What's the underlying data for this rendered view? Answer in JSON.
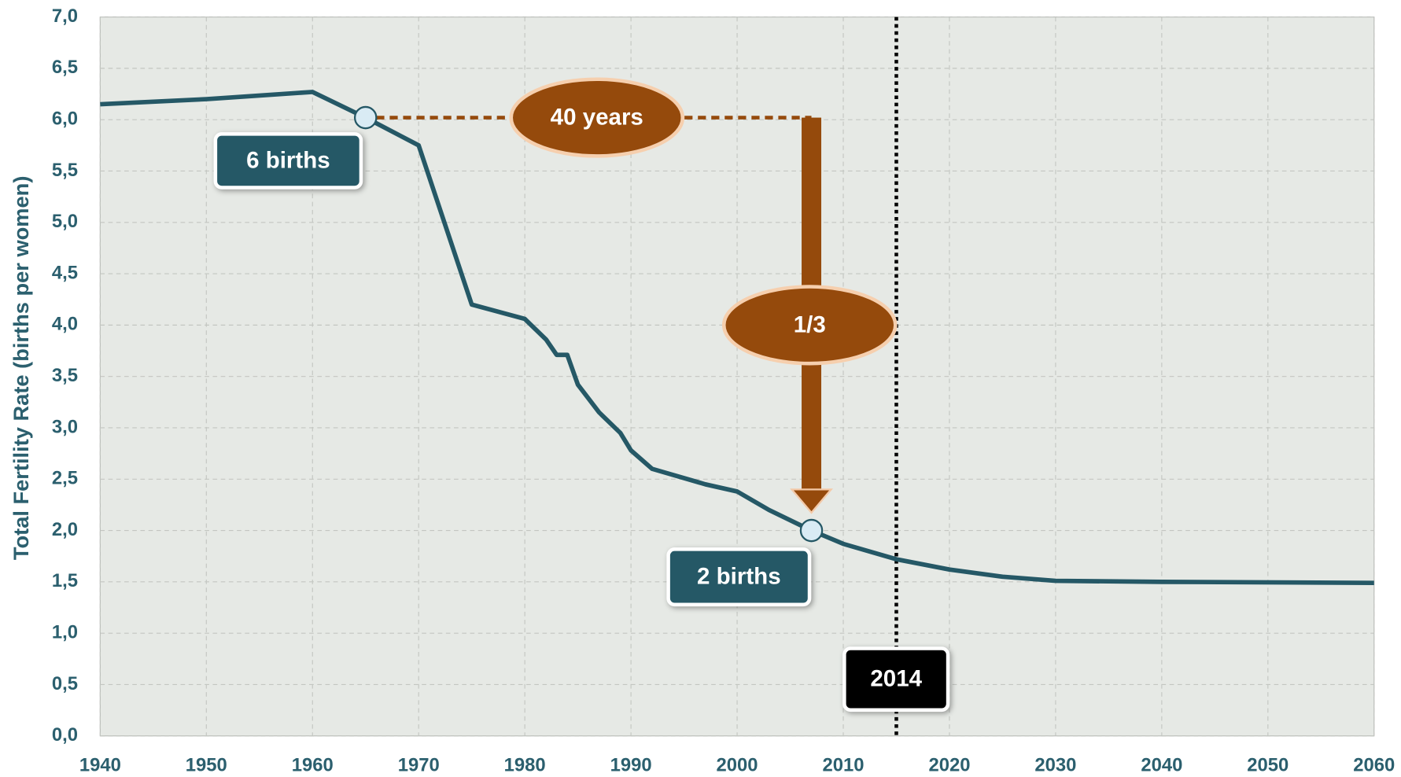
{
  "chart_data": {
    "type": "line",
    "y_label": "Total Fertility Rate (births per  women)",
    "x": [
      1940,
      1950,
      1960,
      1965,
      1970,
      1975,
      1980,
      1982,
      1983,
      1984,
      1985,
      1987,
      1989,
      1990,
      1992,
      1997,
      2000,
      2003,
      2007,
      2010,
      2015,
      2020,
      2025,
      2030,
      2040,
      2060
    ],
    "series": [
      {
        "name": "Total Fertility Rate",
        "color": "#255866",
        "values": [
          6.15,
          6.2,
          6.27,
          6.02,
          5.75,
          4.2,
          4.06,
          3.86,
          3.71,
          3.71,
          3.42,
          3.15,
          2.95,
          2.78,
          2.6,
          2.45,
          2.38,
          2.2,
          2.0,
          1.87,
          1.72,
          1.62,
          1.55,
          1.51,
          1.5,
          1.49
        ]
      }
    ],
    "xlim": [
      1940,
      2060
    ],
    "xticks": [
      1940,
      1950,
      1960,
      1970,
      1980,
      1990,
      2000,
      2010,
      2020,
      2030,
      2040,
      2050,
      2060
    ],
    "ylim": [
      0,
      7
    ],
    "yticks": [
      {
        "value": 0,
        "label": "0,0"
      },
      {
        "value": 0.5,
        "label": "0,5"
      },
      {
        "value": 1,
        "label": "1,0"
      },
      {
        "value": 1.5,
        "label": "1,5"
      },
      {
        "value": 2,
        "label": "2,0"
      },
      {
        "value": 2.5,
        "label": "2,5"
      },
      {
        "value": 3,
        "label": "3,0"
      },
      {
        "value": 3.5,
        "label": "3,5"
      },
      {
        "value": 4,
        "label": "4,0"
      },
      {
        "value": 4.5,
        "label": "4,5"
      },
      {
        "value": 5,
        "label": "5,0"
      },
      {
        "value": 5.5,
        "label": "5,5"
      },
      {
        "value": 6,
        "label": "6,0"
      },
      {
        "value": 6.5,
        "label": "6,5"
      },
      {
        "value": 7,
        "label": "7,0"
      }
    ],
    "grid": true,
    "highlight_points": [
      {
        "x": 1965,
        "y": 6.02,
        "label": "6 births"
      },
      {
        "x": 2007,
        "y": 2.0,
        "label": "2 births"
      }
    ],
    "span_label": "40 years",
    "ratio_label": "1/3",
    "accent_color": "#954a0c",
    "reference_line": {
      "x": 2015,
      "label": "2014"
    }
  }
}
